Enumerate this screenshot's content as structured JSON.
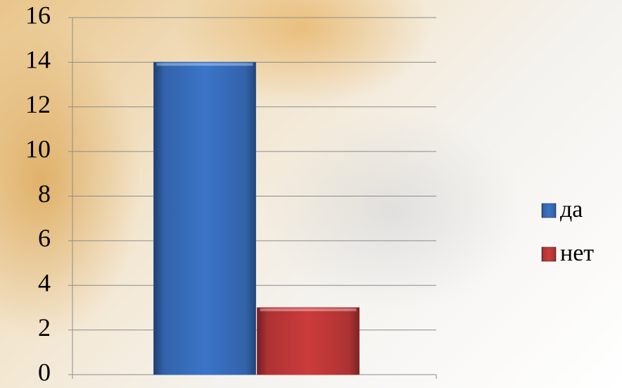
{
  "chart_data": {
    "type": "bar",
    "categories": [
      null
    ],
    "series": [
      {
        "name": "да",
        "color": "#3b74c8",
        "values": [
          14
        ]
      },
      {
        "name": "нет",
        "color": "#cc3b3b",
        "values": [
          3
        ]
      }
    ],
    "ylim": [
      0,
      16
    ],
    "yticks": [
      0,
      2,
      4,
      6,
      8,
      10,
      12,
      14,
      16
    ],
    "grid": true,
    "legend": "right"
  }
}
